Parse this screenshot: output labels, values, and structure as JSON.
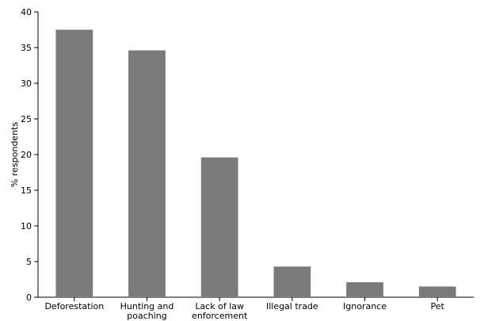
{
  "chart_data": {
    "type": "bar",
    "title": "",
    "xlabel": "",
    "ylabel": "% respondents",
    "ylim": [
      0,
      40
    ],
    "yticks": [
      0,
      5,
      10,
      15,
      20,
      25,
      30,
      35,
      40
    ],
    "categories": [
      [
        "Deforestation"
      ],
      [
        "Hunting and",
        "poaching"
      ],
      [
        "Lack of law",
        "enforcement"
      ],
      [
        "Illegal trade"
      ],
      [
        "Ignorance"
      ],
      [
        "Pet"
      ]
    ],
    "values": [
      37.5,
      34.6,
      19.6,
      4.3,
      2.1,
      1.5
    ],
    "colors": {
      "bar": "#7a7a7a"
    },
    "grid": false,
    "legend": "none"
  }
}
